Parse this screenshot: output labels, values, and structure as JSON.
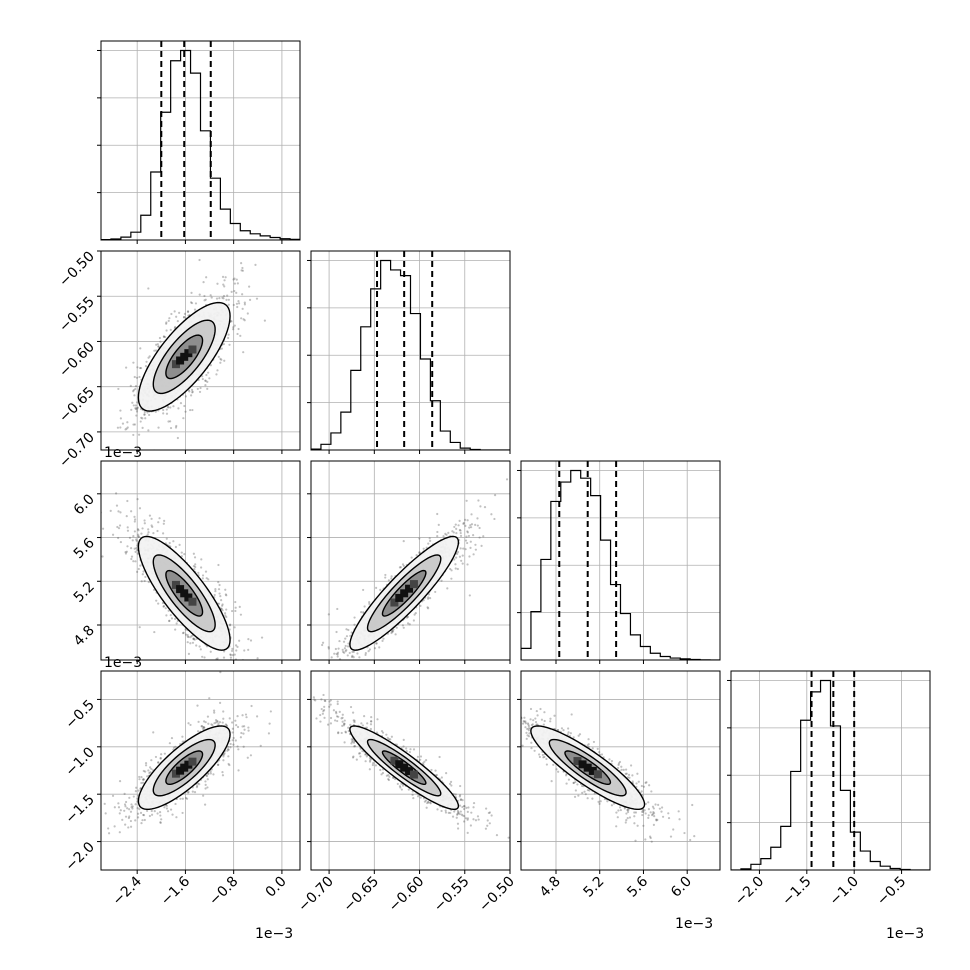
{
  "chart_data": {
    "type": "corner",
    "num_params": 4,
    "colors": {
      "ink": "#000000",
      "grid": "#b0b0b0",
      "scatter": "#4d4d4d"
    },
    "grid": true,
    "multiplier_label": "1e−3",
    "parameters": [
      {
        "index": 0,
        "range": [
          -3.0,
          0.3
        ],
        "ticks": [
          -2.4,
          -1.6,
          -0.8,
          0.0
        ],
        "tick_labels": [
          "−2.4",
          "−1.6",
          "−0.8",
          "0.0"
        ],
        "quantiles": [
          -2.0,
          -1.62,
          -1.18
        ],
        "hist_edges": [
          -3.0,
          -2.835,
          -2.67,
          -2.505,
          -2.34,
          -2.175,
          -2.01,
          -1.845,
          -1.68,
          -1.515,
          -1.35,
          -1.185,
          -1.02,
          -0.855,
          -0.69,
          -0.525,
          -0.36,
          -0.195,
          -0.03,
          0.135,
          0.3
        ],
        "hist_counts": [
          2,
          5,
          14,
          38,
          120,
          330,
          620,
          870,
          920,
          810,
          530,
          300,
          150,
          80,
          45,
          30,
          20,
          12,
          6,
          3
        ]
      },
      {
        "index": 1,
        "range": [
          -0.72,
          -0.5
        ],
        "ticks": [
          -0.7,
          -0.65,
          -0.6,
          -0.55,
          -0.5
        ],
        "tick_labels": [
          "−0.70",
          "−0.65",
          "−0.60",
          "−0.55",
          "−0.50"
        ],
        "quantiles": [
          -0.647,
          -0.617,
          -0.586
        ],
        "hist_edges": [
          -0.72,
          -0.709,
          -0.698,
          -0.687,
          -0.676,
          -0.665,
          -0.654,
          -0.643,
          -0.632,
          -0.621,
          -0.61,
          -0.599,
          -0.588,
          -0.577,
          -0.566,
          -0.555,
          -0.544,
          -0.533,
          -0.522,
          -0.511,
          -0.5
        ],
        "hist_counts": [
          5,
          30,
          90,
          200,
          420,
          650,
          850,
          1000,
          950,
          920,
          720,
          480,
          260,
          100,
          40,
          10,
          3,
          0,
          0,
          0
        ]
      },
      {
        "index": 2,
        "range": [
          4.48,
          6.3
        ],
        "ticks": [
          4.8,
          5.2,
          5.6,
          6.0
        ],
        "tick_labels": [
          "4.8",
          "5.2",
          "5.6",
          "6.0"
        ],
        "quantiles": [
          4.83,
          5.09,
          5.35
        ],
        "hist_edges": [
          4.48,
          4.571,
          4.662,
          4.753,
          4.844,
          4.935,
          5.026,
          5.117,
          5.208,
          5.299,
          5.39,
          5.481,
          5.572,
          5.663,
          5.754,
          5.845,
          5.936,
          6.027,
          6.118,
          6.209,
          6.3
        ],
        "hist_counts": [
          60,
          250,
          520,
          820,
          920,
          980,
          940,
          850,
          620,
          390,
          240,
          130,
          70,
          35,
          18,
          10,
          6,
          3,
          1,
          0
        ]
      },
      {
        "index": 3,
        "range": [
          -2.3,
          -0.2
        ],
        "ticks": [
          -2.0,
          -1.5,
          -1.0,
          -0.5
        ],
        "tick_labels": [
          "−2.0",
          "−1.5",
          "−1.0",
          "−0.5"
        ],
        "quantiles": [
          -1.45,
          -1.22,
          -1.0
        ],
        "hist_edges": [
          -2.3,
          -2.195,
          -2.09,
          -1.985,
          -1.88,
          -1.775,
          -1.67,
          -1.565,
          -1.46,
          -1.355,
          -1.25,
          -1.145,
          -1.04,
          -0.935,
          -0.83,
          -0.725,
          -0.62,
          -0.515,
          -0.41,
          -0.305,
          -0.2
        ],
        "hist_counts": [
          0,
          6,
          30,
          60,
          120,
          230,
          520,
          790,
          940,
          1000,
          760,
          420,
          200,
          100,
          45,
          20,
          8,
          3,
          0,
          0
        ]
      }
    ],
    "correlations": [
      {
        "row": 1,
        "col": 0,
        "mean": [
          -1.62,
          -0.617
        ],
        "std": [
          0.38,
          0.03
        ],
        "rho": 0.75
      },
      {
        "row": 2,
        "col": 0,
        "mean": [
          -1.62,
          5.09
        ],
        "std": [
          0.38,
          0.26
        ],
        "rho": -0.82
      },
      {
        "row": 2,
        "col": 1,
        "mean": [
          -0.617,
          5.09
        ],
        "std": [
          0.03,
          0.26
        ],
        "rho": 0.9
      },
      {
        "row": 3,
        "col": 0,
        "mean": [
          -1.62,
          -1.22
        ],
        "std": [
          0.38,
          0.22
        ],
        "rho": 0.8
      },
      {
        "row": 3,
        "col": 1,
        "mean": [
          -0.617,
          -1.22
        ],
        "std": [
          0.03,
          0.22
        ],
        "rho": -0.92
      },
      {
        "row": 3,
        "col": 2,
        "mean": [
          5.09,
          -1.22
        ],
        "std": [
          0.26,
          0.22
        ],
        "rho": -0.88
      }
    ]
  }
}
